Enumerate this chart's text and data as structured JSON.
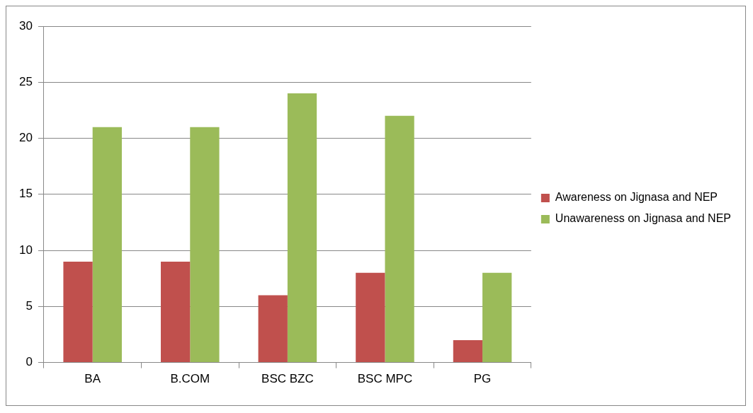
{
  "chart_data": {
    "type": "bar",
    "categories": [
      "BA",
      "B.COM",
      "BSC BZC",
      "BSC MPC",
      "PG"
    ],
    "series": [
      {
        "name": "Awareness on Jignasa and NEP",
        "color": "#c0504d",
        "values": [
          9,
          9,
          6,
          8,
          2
        ]
      },
      {
        "name": "Unawareness on Jignasa and NEP",
        "color": "#9bbb59",
        "values": [
          21,
          21,
          24,
          22,
          8
        ]
      }
    ],
    "ylim": [
      0,
      30
    ],
    "yticks": [
      0,
      5,
      10,
      15,
      20,
      25,
      30
    ],
    "grid": "y",
    "legend": "right"
  }
}
